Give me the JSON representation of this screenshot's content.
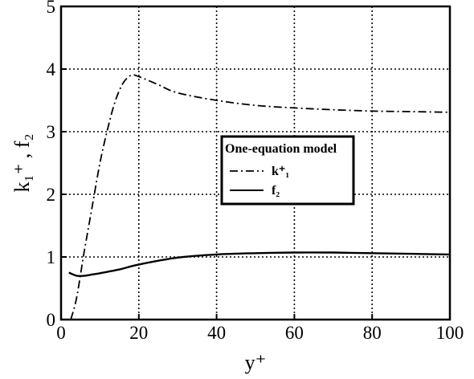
{
  "chart_data": {
    "type": "line",
    "title": "",
    "xlabel": "y⁺",
    "ylabel": "k₁⁺ , f₂",
    "xlim": [
      0,
      100
    ],
    "ylim": [
      0,
      5
    ],
    "x_ticks": [
      "0",
      "20",
      "40",
      "60",
      "80",
      "100"
    ],
    "y_ticks": [
      "0",
      "1",
      "2",
      "3",
      "4",
      "5"
    ],
    "grid": true,
    "legend": {
      "title": "One-equation model",
      "placement": "center-right"
    },
    "series": [
      {
        "name": "k⁺₁",
        "style": "dash-dot",
        "x": [
          2.5,
          4,
          6,
          8,
          10,
          12,
          14,
          16,
          18,
          20,
          25,
          30,
          40,
          50,
          60,
          70,
          80,
          90,
          100
        ],
        "y": [
          0.0,
          0.35,
          1.1,
          1.8,
          2.5,
          3.05,
          3.5,
          3.78,
          3.9,
          3.88,
          3.75,
          3.62,
          3.5,
          3.42,
          3.38,
          3.35,
          3.33,
          3.32,
          3.31
        ]
      },
      {
        "name": "f₂",
        "style": "solid",
        "x": [
          2,
          4,
          6,
          8,
          10,
          15,
          20,
          30,
          40,
          50,
          60,
          70,
          80,
          90,
          100
        ],
        "y": [
          0.75,
          0.7,
          0.7,
          0.72,
          0.74,
          0.8,
          0.88,
          0.99,
          1.04,
          1.06,
          1.07,
          1.07,
          1.06,
          1.05,
          1.04
        ]
      }
    ]
  }
}
